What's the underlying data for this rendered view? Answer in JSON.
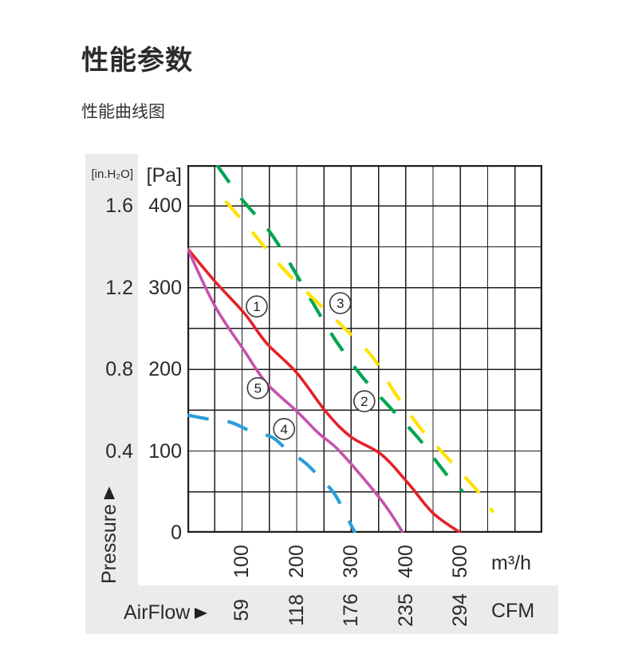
{
  "page": {
    "title": "性能参数",
    "subtitle": "性能曲线图"
  },
  "y_axis": {
    "inh2o_header": "[in.H₂O]",
    "pa_header": "[Pa]",
    "pressure_label": "Pressure"
  },
  "x_axis": {
    "airflow_label": "AirFlow",
    "m3h_unit": "m³/h",
    "cfm_unit": "CFM"
  },
  "colors": {
    "curve_red": "#e62129",
    "curve_green": "#00a551",
    "curve_yellow": "#ffe100",
    "curve_blue": "#2b9fd9",
    "curve_magenta": "#c453ad",
    "grid": "#1c1c1c",
    "strip_gray": "#ebebeb"
  },
  "chart_data": {
    "type": "line",
    "title": "性能曲线图",
    "xlabel": "AirFlow (m³/h)",
    "ylabel": "Pressure (Pa)",
    "xlim": [
      0,
      650
    ],
    "ylim": [
      0,
      450
    ],
    "grid_step_x": 50,
    "grid_step_y": 50,
    "grid_on": true,
    "x_ticks_m3h": [
      100,
      200,
      300,
      400,
      500
    ],
    "x_ticks_cfm": [
      59,
      118,
      176,
      235,
      294
    ],
    "y_ticks_pa": [
      400,
      300,
      200,
      100,
      0
    ],
    "y_ticks_inh2o": [
      1.6,
      1.2,
      0.8,
      0.4
    ],
    "series": [
      {
        "name": "curve-1",
        "label": "1",
        "color": "#e62129",
        "style": "solid",
        "points": [
          [
            0,
            348
          ],
          [
            50,
            308
          ],
          [
            105,
            268
          ],
          [
            145,
            232
          ],
          [
            200,
            196
          ],
          [
            255,
            147
          ],
          [
            300,
            117
          ],
          [
            355,
            96
          ],
          [
            405,
            60
          ],
          [
            450,
            24
          ],
          [
            500,
            0
          ]
        ],
        "label_at": [
          127,
          277
        ]
      },
      {
        "name": "curve-2",
        "label": "2",
        "color": "#00a551",
        "style": "dashed",
        "points": [
          [
            54,
            450
          ],
          [
            100,
            408
          ],
          [
            150,
            369
          ],
          [
            190,
            327
          ],
          [
            230,
            281
          ],
          [
            273,
            234
          ],
          [
            320,
            191
          ],
          [
            373,
            152
          ],
          [
            424,
            115
          ],
          [
            475,
            71
          ],
          [
            505,
            50
          ]
        ],
        "label_at": [
          324,
          161
        ]
      },
      {
        "name": "curve-3",
        "label": "3",
        "color": "#ffe100",
        "style": "dashed",
        "points": [
          [
            70,
            406
          ],
          [
            120,
            367
          ],
          [
            173,
            325
          ],
          [
            227,
            289
          ],
          [
            285,
            252
          ],
          [
            339,
            215
          ],
          [
            380,
            171
          ],
          [
            427,
            128
          ],
          [
            480,
            89
          ],
          [
            534,
            49
          ],
          [
            560,
            25
          ]
        ],
        "label_at": [
          280,
          281
        ]
      },
      {
        "name": "curve-4",
        "label": "4",
        "color": "#2b9fd9",
        "style": "dashed",
        "points": [
          [
            0,
            144
          ],
          [
            40,
            139
          ],
          [
            80,
            135
          ],
          [
            120,
            123
          ],
          [
            155,
            117
          ],
          [
            185,
            100
          ],
          [
            215,
            86
          ],
          [
            245,
            66
          ],
          [
            270,
            47
          ],
          [
            290,
            22
          ],
          [
            307,
            0
          ]
        ],
        "label_at": [
          177,
          127
        ]
      },
      {
        "name": "curve-5",
        "label": "5",
        "color": "#c453ad",
        "style": "solid",
        "points": [
          [
            0,
            348
          ],
          [
            50,
            278
          ],
          [
            105,
            222
          ],
          [
            145,
            183
          ],
          [
            200,
            149
          ],
          [
            240,
            122
          ],
          [
            280,
            99
          ],
          [
            355,
            40
          ],
          [
            395,
            0
          ]
        ],
        "label_at": [
          129,
          177
        ]
      }
    ]
  }
}
